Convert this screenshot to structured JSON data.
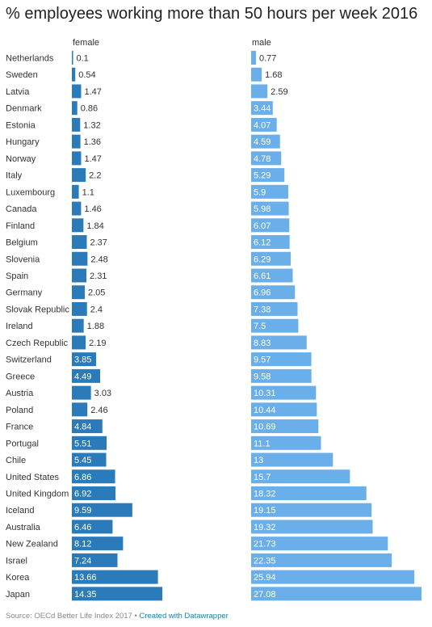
{
  "title": "% employees working more than 50 hours per week 2016",
  "source_text": "Source: OECd Better Life Index 2017",
  "separator": "•",
  "credit_text": "Created with Datawrapper",
  "colors": {
    "female": "#2b7bba",
    "male": "#6aaeea",
    "label_dark": "#333333",
    "label_light": "#ffffff"
  },
  "chart_data": {
    "type": "bar",
    "title": "% employees working more than 50 hours per week 2016",
    "categories": [
      "Netherlands",
      "Sweden",
      "Latvia",
      "Denmark",
      "Estonia",
      "Hungary",
      "Norway",
      "Italy",
      "Luxembourg",
      "Canada",
      "Finland",
      "Belgium",
      "Slovenia",
      "Spain",
      "Germany",
      "Slovak Republic",
      "Ireland",
      "Czech Republic",
      "Switzerland",
      "Greece",
      "Austria",
      "Poland",
      "France",
      "Portugal",
      "Chile",
      "United States",
      "United Kingdom",
      "Iceland",
      "Australia",
      "New Zealand",
      "Israel",
      "Korea",
      "Japan"
    ],
    "series": [
      {
        "name": "female",
        "values": [
          0.1,
          0.54,
          1.47,
          0.86,
          1.32,
          1.36,
          1.47,
          2.2,
          1.1,
          1.46,
          1.84,
          2.37,
          2.48,
          2.31,
          2.05,
          2.4,
          1.88,
          2.19,
          3.85,
          4.49,
          3.03,
          2.46,
          4.84,
          5.51,
          5.45,
          6.86,
          6.92,
          9.59,
          6.46,
          8.12,
          7.24,
          13.66,
          14.35
        ]
      },
      {
        "name": "male",
        "values": [
          0.77,
          1.68,
          2.59,
          3.44,
          4.07,
          4.59,
          4.78,
          5.29,
          5.9,
          5.98,
          6.07,
          6.12,
          6.29,
          6.61,
          6.96,
          7.38,
          7.5,
          8.83,
          9.57,
          9.58,
          10.31,
          10.44,
          10.69,
          11.1,
          13,
          15.7,
          18.32,
          19.15,
          19.32,
          21.73,
          22.35,
          25.94,
          27.08
        ]
      }
    ],
    "value_labels": {
      "female": [
        "0.1",
        "0.54",
        "1.47",
        "0.86",
        "1.32",
        "1.36",
        "1.47",
        "2.2",
        "1.1",
        "1.46",
        "1.84",
        "2.37",
        "2.48",
        "2.31",
        "2.05",
        "2.4",
        "1.88",
        "2.19",
        "3.85",
        "4.49",
        "3.03",
        "2.46",
        "4.84",
        "5.51",
        "5.45",
        "6.86",
        "6.92",
        "9.59",
        "6.46",
        "8.12",
        "7.24",
        "13.66",
        "14.35"
      ],
      "male": [
        "0.77",
        "1.68",
        "2.59",
        "3.44",
        "4.07",
        "4.59",
        "4.78",
        "5.29",
        "5.9",
        "5.98",
        "6.07",
        "6.12",
        "6.29",
        "6.61",
        "6.96",
        "7.38",
        "7.5",
        "8.83",
        "9.57",
        "9.58",
        "10.31",
        "10.44",
        "10.69",
        "11.1",
        "13",
        "15.7",
        "18.32",
        "19.15",
        "19.32",
        "21.73",
        "22.35",
        "25.94",
        "27.08"
      ]
    },
    "xlim": [
      0,
      27.08
    ],
    "grid": false
  }
}
